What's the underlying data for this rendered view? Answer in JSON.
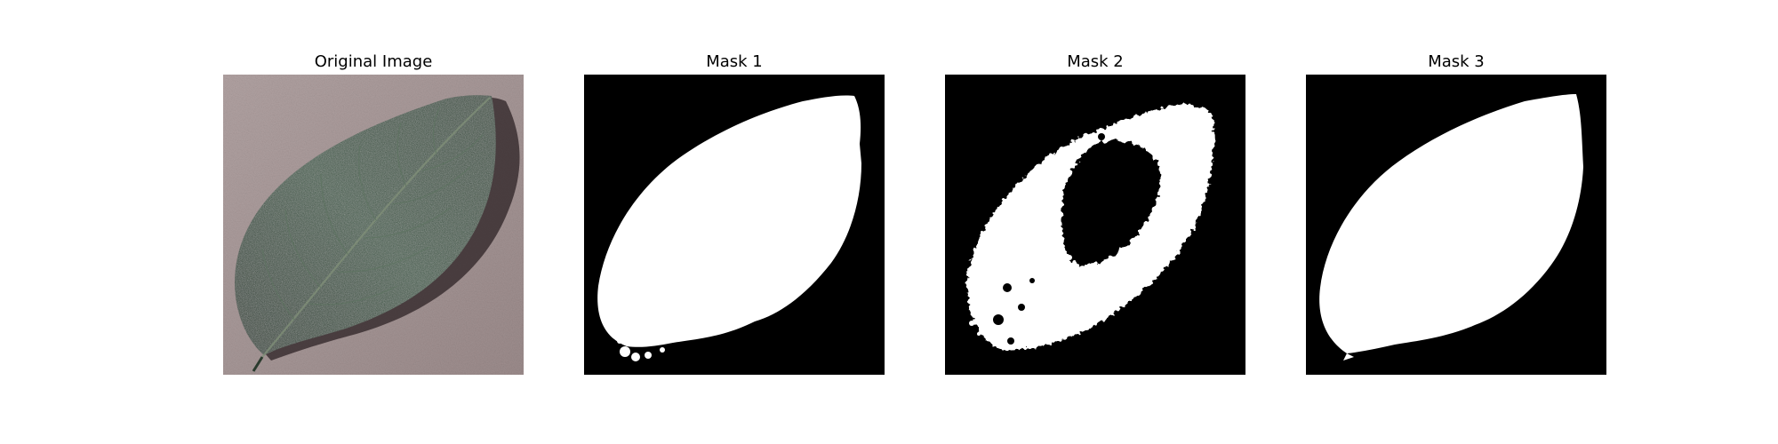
{
  "figure": {
    "panels": [
      {
        "title": "Original Image"
      },
      {
        "title": "Mask 1"
      },
      {
        "title": "Mask 2"
      },
      {
        "title": "Mask 3"
      }
    ]
  },
  "colors": {
    "figure_background": "#ffffff",
    "mask_background": "#000000",
    "mask_foreground": "#ffffff",
    "leaf_dark": "#22382a",
    "leaf_mid": "#3d5a43",
    "surface": "#a39494"
  }
}
